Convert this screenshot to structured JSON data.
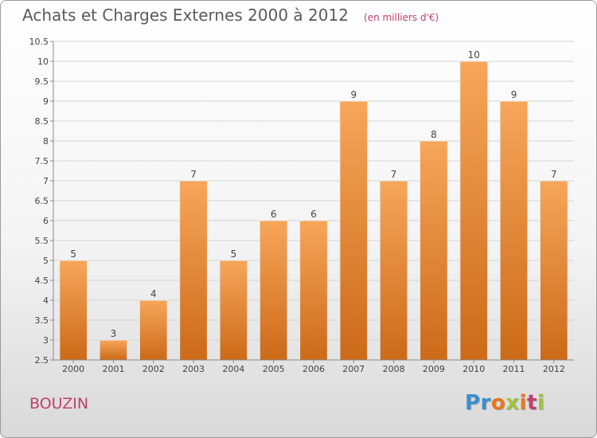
{
  "title": "Achats et Charges Externes 2000 à 2012",
  "subtitle": "(en milliers d'€)",
  "commune": "BOUZIN",
  "logo": {
    "text": "Proxiti",
    "letters": [
      "P",
      "r",
      "o",
      "x",
      "i",
      "t",
      "i"
    ],
    "colors": [
      "#3a8fd0",
      "#3a8fd0",
      "#e8781e",
      "#9dc53a",
      "#e8781e",
      "#c0406a",
      "#9dc53a"
    ]
  },
  "colors": {
    "bar_top": "#f7a65a",
    "bar_bottom": "#cc6a18",
    "grid": "#d4d4d4",
    "axis": "#8a8a8a",
    "text": "#444444"
  },
  "chart_data": {
    "type": "bar",
    "categories": [
      "2000",
      "2001",
      "2002",
      "2003",
      "2004",
      "2005",
      "2006",
      "2007",
      "2008",
      "2009",
      "2010",
      "2011",
      "2012"
    ],
    "values": [
      5,
      3,
      4,
      7,
      5,
      6,
      6,
      9,
      7,
      8,
      10,
      9,
      7
    ],
    "ylim": [
      2.5,
      10.5
    ],
    "yticks": [
      "2.5",
      "3",
      "3.5",
      "4",
      "4.5",
      "5",
      "5.5",
      "6",
      "6.5",
      "7",
      "7.5",
      "8",
      "8.5",
      "9",
      "9.5",
      "10",
      "10.5"
    ],
    "grid": true,
    "xlabel": "",
    "ylabel": ""
  }
}
